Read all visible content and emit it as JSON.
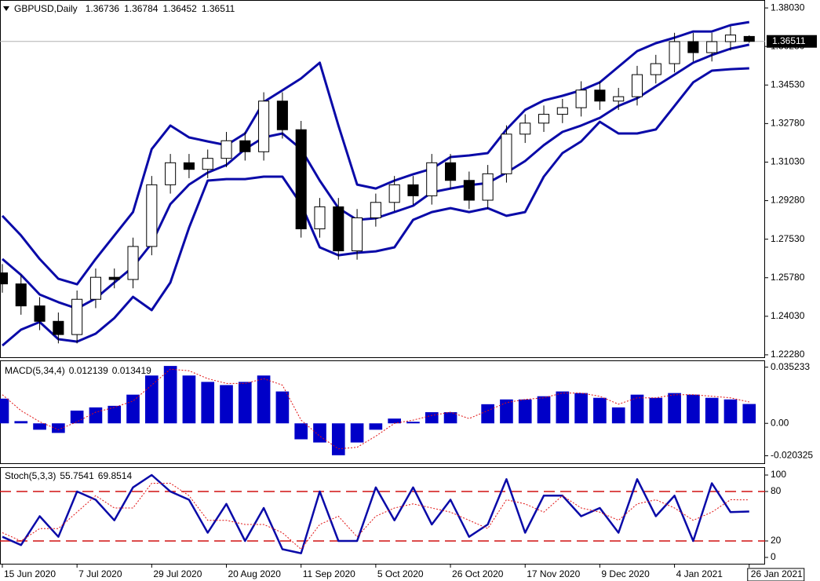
{
  "chart_data": [
    {
      "type": "candlestick",
      "title": "GBPUSD,Daily",
      "x": [
        0,
        4,
        8,
        12,
        16,
        20,
        24,
        28,
        32,
        36,
        40,
        44,
        48,
        52,
        56,
        60,
        64,
        68,
        72,
        76,
        80,
        84,
        88,
        92,
        96,
        100,
        104,
        108,
        112,
        116,
        120,
        124,
        128,
        132,
        136,
        140,
        144,
        148,
        152,
        156,
        160
      ],
      "open": [
        1.26,
        1.255,
        1.245,
        1.238,
        1.232,
        1.248,
        1.258,
        1.257,
        1.272,
        1.3,
        1.31,
        1.307,
        1.312,
        1.32,
        1.315,
        1.338,
        1.325,
        1.28,
        1.29,
        1.27,
        1.285,
        1.292,
        1.3,
        1.295,
        1.31,
        1.302,
        1.293,
        1.305,
        1.323,
        1.328,
        1.332,
        1.335,
        1.343,
        1.338,
        1.34,
        1.35,
        1.355,
        1.365,
        1.36,
        1.365,
        1.36736
      ],
      "high": [
        1.264,
        1.259,
        1.249,
        1.242,
        1.252,
        1.262,
        1.262,
        1.276,
        1.304,
        1.314,
        1.314,
        1.316,
        1.324,
        1.324,
        1.342,
        1.342,
        1.329,
        1.294,
        1.294,
        1.289,
        1.296,
        1.304,
        1.304,
        1.314,
        1.314,
        1.306,
        1.309,
        1.327,
        1.332,
        1.336,
        1.339,
        1.347,
        1.347,
        1.344,
        1.354,
        1.359,
        1.369,
        1.369,
        1.369,
        1.372,
        1.36784
      ],
      "low": [
        1.251,
        1.241,
        1.234,
        1.228,
        1.228,
        1.244,
        1.253,
        1.253,
        1.268,
        1.296,
        1.303,
        1.303,
        1.308,
        1.311,
        1.311,
        1.321,
        1.276,
        1.276,
        1.266,
        1.266,
        1.281,
        1.288,
        1.291,
        1.291,
        1.298,
        1.289,
        1.289,
        1.301,
        1.319,
        1.324,
        1.328,
        1.331,
        1.334,
        1.334,
        1.336,
        1.346,
        1.351,
        1.356,
        1.356,
        1.361,
        1.36452
      ],
      "close": [
        1.255,
        1.245,
        1.238,
        1.232,
        1.248,
        1.258,
        1.257,
        1.272,
        1.3,
        1.31,
        1.307,
        1.312,
        1.32,
        1.315,
        1.338,
        1.325,
        1.28,
        1.29,
        1.27,
        1.285,
        1.292,
        1.3,
        1.295,
        1.31,
        1.302,
        1.293,
        1.305,
        1.323,
        1.328,
        1.332,
        1.335,
        1.343,
        1.338,
        1.34,
        1.35,
        1.355,
        1.365,
        1.36,
        1.365,
        1.368,
        1.36511
      ],
      "bands": {
        "color": "#0a0aa8",
        "upper": [
          1.2859,
          1.277,
          1.2663,
          1.2573,
          1.2548,
          1.2663,
          1.277,
          1.2876,
          1.3162,
          1.3269,
          1.3215,
          1.3197,
          1.318,
          1.3233,
          1.3376,
          1.3429,
          1.3483,
          1.3554,
          1.3269,
          1.3001,
          1.2983,
          1.3019,
          1.3048,
          1.3073,
          1.3126,
          1.3133,
          1.3144,
          1.3251,
          1.334,
          1.3383,
          1.3404,
          1.3429,
          1.3465,
          1.3536,
          1.3607,
          1.3643,
          1.3668,
          1.3696,
          1.3696,
          1.3725,
          1.3739
        ],
        "middle": [
          1.2663,
          1.2591,
          1.2502,
          1.2467,
          1.2438,
          1.2484,
          1.2556,
          1.2627,
          1.2734,
          1.2912,
          1.3001,
          1.3055,
          1.309,
          1.3162,
          1.3215,
          1.3233,
          1.3162,
          1.3019,
          1.2894,
          1.2841,
          1.2848,
          1.2876,
          1.2905,
          1.2966,
          1.2983,
          1.2998,
          1.3008,
          1.3055,
          1.3108,
          1.318,
          1.324,
          1.3269,
          1.3304,
          1.3358,
          1.3393,
          1.3447,
          1.35,
          1.3554,
          1.3589,
          1.3618,
          1.3636
        ],
        "lower": [
          1.227,
          1.2342,
          1.2377,
          1.2299,
          1.2288,
          1.2324,
          1.2395,
          1.2491,
          1.2431,
          1.2556,
          1.2805,
          1.3019,
          1.3026,
          1.3026,
          1.3037,
          1.3037,
          1.2912,
          1.2716,
          1.268,
          1.2691,
          1.2698,
          1.2716,
          1.2841,
          1.2876,
          1.2894,
          1.2876,
          1.2894,
          1.2859,
          1.2876,
          1.3037,
          1.3144,
          1.3197,
          1.3286,
          1.3233,
          1.3233,
          1.3251,
          1.3358,
          1.3465,
          1.3518,
          1.3525,
          1.3529
        ]
      },
      "xlim": [
        -0.5,
        163.4
      ],
      "ylim": [
        1.2217,
        1.3839
      ],
      "yticks": [
        {
          "value": 1.3803,
          "label": "1.38030"
        },
        {
          "value": 1.3628,
          "label": "1.36280"
        },
        {
          "value": 1.3453,
          "label": "1.34530"
        },
        {
          "value": 1.3278,
          "label": "1.32780"
        },
        {
          "value": 1.3103,
          "label": "1.31030"
        },
        {
          "value": 1.2928,
          "label": "1.29280"
        },
        {
          "value": 1.2753,
          "label": "1.27530"
        },
        {
          "value": 1.2578,
          "label": "1.25780"
        },
        {
          "value": 1.2403,
          "label": "1.24030"
        },
        {
          "value": 1.2228,
          "label": "1.22280"
        }
      ]
    },
    {
      "type": "bar",
      "title": "MACD(5,34,4)",
      "x": [
        0,
        4,
        8,
        12,
        16,
        20,
        24,
        28,
        32,
        36,
        40,
        44,
        48,
        52,
        56,
        60,
        64,
        68,
        72,
        76,
        80,
        84,
        88,
        92,
        96,
        100,
        104,
        108,
        112,
        116,
        120,
        124,
        128,
        132,
        136,
        140,
        144,
        148,
        152,
        156,
        160
      ],
      "values": [
        0.0155,
        0.0014,
        -0.004,
        -0.006,
        0.008,
        0.01,
        0.011,
        0.018,
        0.03,
        0.036,
        0.03,
        0.026,
        0.024,
        0.026,
        0.03,
        0.02,
        -0.01,
        -0.012,
        -0.02,
        -0.012,
        -0.004,
        0.003,
        0.001,
        0.007,
        0.007,
        0.0,
        0.012,
        0.015,
        0.015,
        0.017,
        0.02,
        0.019,
        0.016,
        0.01,
        0.018,
        0.016,
        0.019,
        0.018,
        0.016,
        0.015,
        0.012139
      ],
      "color": "#0000c8",
      "signal": {
        "color": "#e01010",
        "values": [
          0.018,
          0.008,
          0.001,
          -0.004,
          0.001,
          0.007,
          0.01,
          0.014,
          0.024,
          0.034,
          0.033,
          0.028,
          0.025,
          0.025,
          0.028,
          0.024,
          0.002,
          -0.008,
          -0.016,
          -0.015,
          -0.008,
          0.0,
          0.002,
          0.005,
          0.007,
          0.003,
          0.008,
          0.013,
          0.015,
          0.016,
          0.019,
          0.019,
          0.017,
          0.012,
          0.016,
          0.016,
          0.018,
          0.018,
          0.017,
          0.016,
          0.013419
        ]
      },
      "xlim": [
        -0.5,
        163.4
      ],
      "ylim": [
        -0.0255,
        0.039
      ],
      "yticks": [
        0.035233,
        {
          "value": 0,
          "label": "0.00"
        },
        -0.020325
      ]
    },
    {
      "type": "line",
      "title": "Stoch(5,3,3)",
      "x": [
        0,
        4,
        8,
        12,
        16,
        20,
        24,
        28,
        32,
        36,
        40,
        44,
        48,
        52,
        56,
        60,
        64,
        68,
        72,
        76,
        80,
        84,
        88,
        92,
        96,
        100,
        104,
        108,
        112,
        116,
        120,
        124,
        128,
        132,
        136,
        140,
        144,
        148,
        152,
        156,
        160
      ],
      "series": [
        {
          "color": "#0a0aa8",
          "values": [
            25,
            15,
            50,
            25,
            80,
            70,
            45,
            85,
            100,
            80,
            70,
            30,
            65,
            20,
            60,
            10,
            5,
            80,
            20,
            20,
            85,
            45,
            85,
            40,
            70,
            25,
            40,
            95,
            30,
            75,
            75,
            50,
            60,
            30,
            95,
            50,
            75,
            20,
            90,
            55,
            55.7541
          ]
        },
        {
          "color": "#e01010",
          "values": [
            30,
            20,
            35,
            35,
            55,
            75,
            60,
            60,
            90,
            90,
            75,
            45,
            45,
            40,
            40,
            30,
            10,
            40,
            50,
            25,
            50,
            60,
            65,
            60,
            55,
            45,
            35,
            70,
            65,
            55,
            75,
            60,
            55,
            45,
            65,
            70,
            60,
            45,
            55,
            70,
            69.8514
          ]
        }
      ],
      "levels": [
        80,
        20
      ],
      "level_color": "#d01010",
      "xlim": [
        -0.5,
        163.4
      ],
      "ylim": [
        -8.6,
        108.6
      ],
      "yticks": [
        100,
        80,
        20,
        0
      ],
      "xticks": [
        {
          "value": 0,
          "label": "15 Jun 2020"
        },
        {
          "value": 16,
          "label": "7 Jul 2020"
        },
        {
          "value": 32,
          "label": "29 Jul 2020"
        },
        {
          "value": 48,
          "label": "20 Aug 2020"
        },
        {
          "value": 64,
          "label": "11 Sep 2020"
        },
        {
          "value": 80,
          "label": "5 Oct 2020"
        },
        {
          "value": 96,
          "label": "26 Oct 2020"
        },
        {
          "value": 112,
          "label": "17 Nov 2020"
        },
        {
          "value": 128,
          "label": "9 Dec 2020"
        },
        {
          "value": 144,
          "label": "4 Jan 2021"
        },
        {
          "value": 160,
          "label": "26 Jan 2021"
        }
      ]
    }
  ]
}
